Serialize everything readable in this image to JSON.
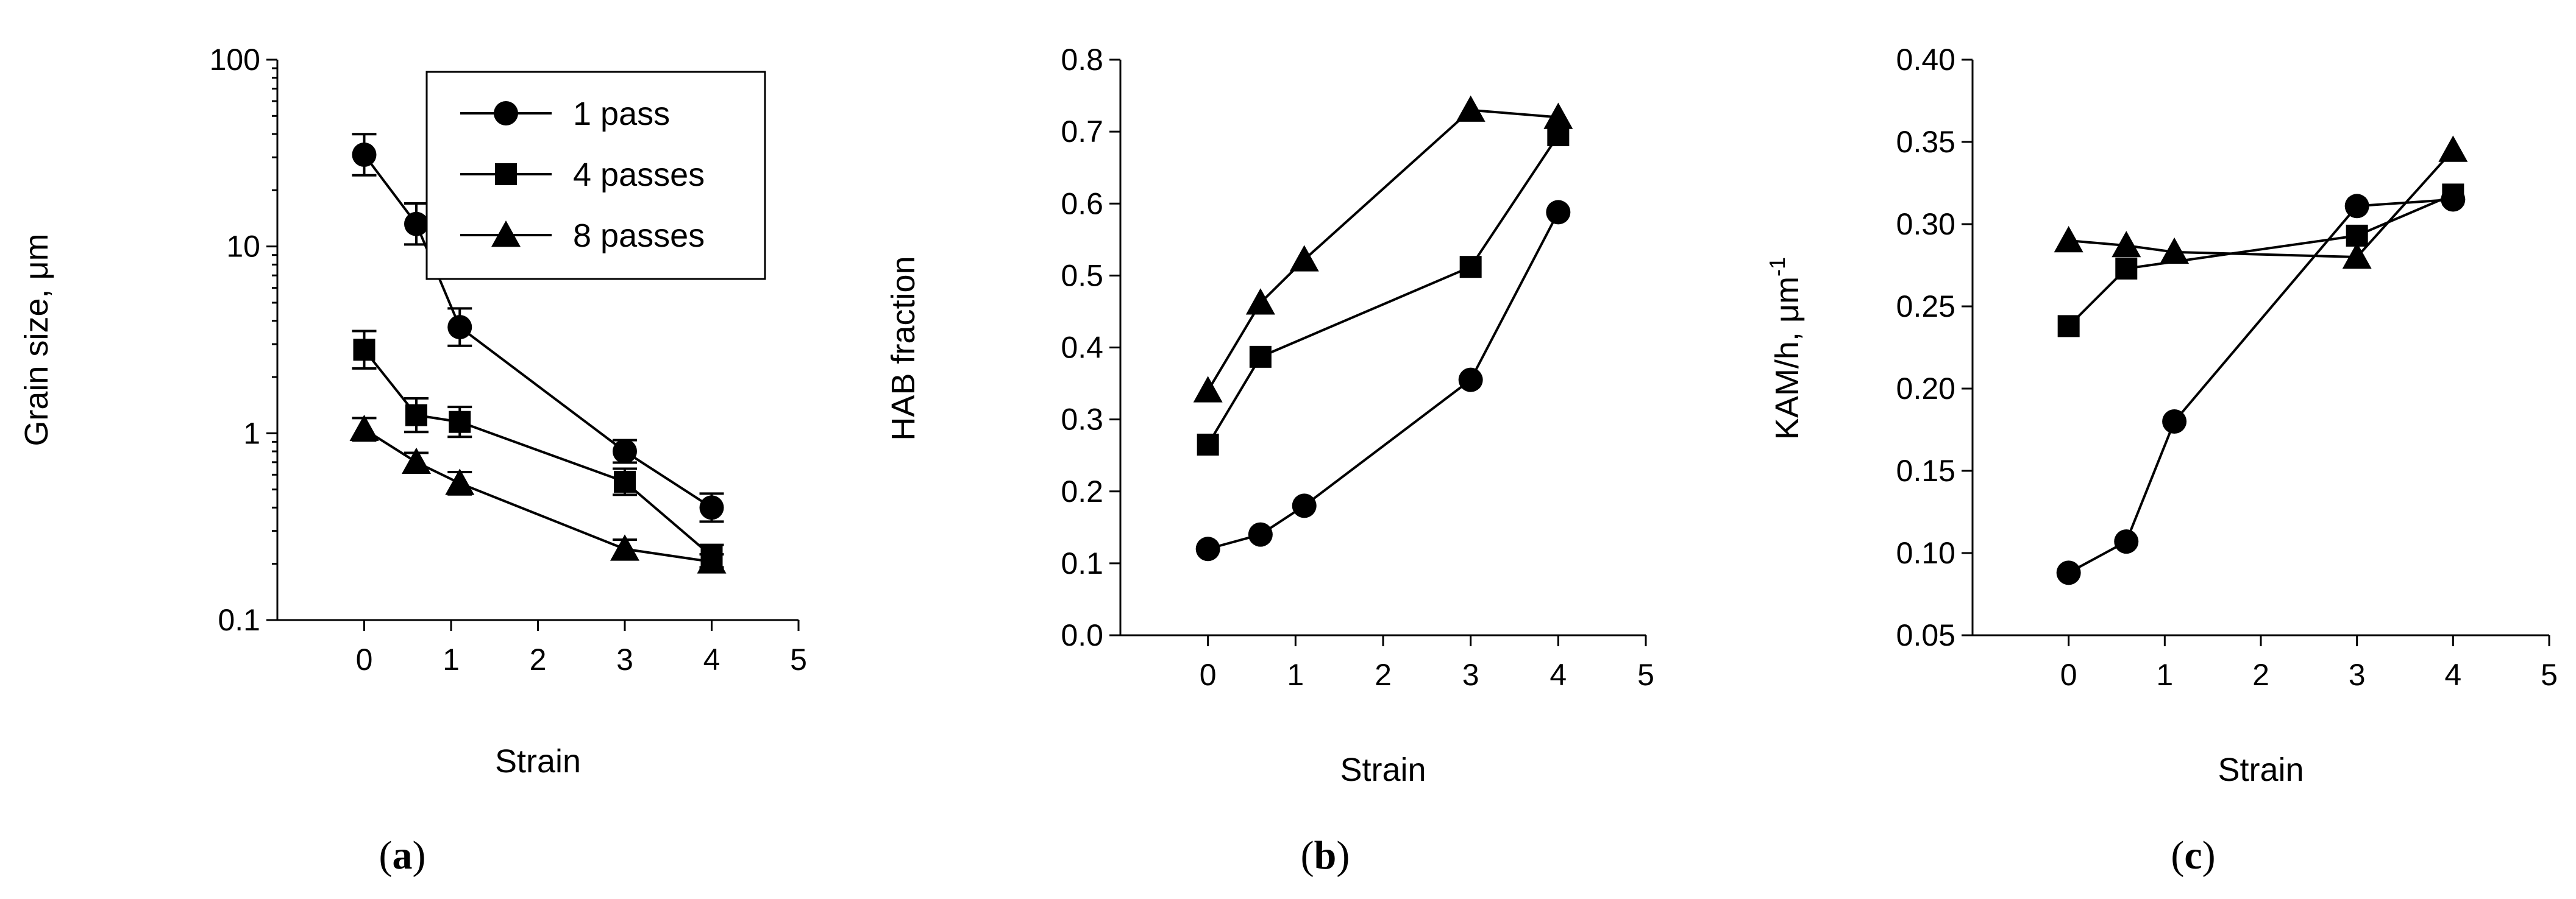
{
  "chart_data": [
    {
      "type": "line",
      "panel_label": "a",
      "xlabel": "Strain",
      "ylabel": "Grain size, μm",
      "yscale": "log",
      "xlim": [
        -1,
        5
      ],
      "ylim": [
        0.1,
        100
      ],
      "xticks": [
        "0",
        "1",
        "2",
        "3",
        "4",
        "5"
      ],
      "yticks": [
        "0.1",
        "1",
        "10",
        "100"
      ],
      "x": [
        0,
        0.6,
        1.1,
        3,
        4
      ],
      "legend": "top-right",
      "series": [
        {
          "name": "1 pass",
          "marker": "circle",
          "values": [
            31,
            13.2,
            3.7,
            0.8,
            0.4
          ],
          "error": [
            0.22,
            0.22,
            0.2,
            0.12,
            0.15
          ]
        },
        {
          "name": "4 passes",
          "marker": "square",
          "values": [
            2.8,
            1.25,
            1.15,
            0.55,
            0.22
          ],
          "error": [
            0.2,
            0.18,
            0.16,
            0.14,
            0.12
          ]
        },
        {
          "name": "8 passes",
          "marker": "triangle",
          "values": [
            1.05,
            0.7,
            0.54,
            0.24,
            0.205
          ],
          "error": [
            0.12,
            0.1,
            0.12,
            0.1,
            0.08
          ]
        }
      ]
    },
    {
      "type": "line",
      "panel_label": "b",
      "xlabel": "Strain",
      "ylabel": "HAB fraction",
      "xlim": [
        -1,
        5
      ],
      "ylim": [
        0,
        0.8
      ],
      "xticks": [
        "0",
        "1",
        "2",
        "3",
        "4",
        "5"
      ],
      "yticks": [
        "0.0",
        "0.1",
        "0.2",
        "0.3",
        "0.4",
        "0.5",
        "0.6",
        "0.7",
        "0.8"
      ],
      "x": [
        0,
        0.6,
        1.1,
        3,
        4
      ],
      "series": [
        {
          "marker": "circle",
          "values": [
            0.12,
            0.14,
            0.18,
            0.355,
            0.588
          ]
        },
        {
          "marker": "square",
          "values": [
            0.265,
            0.387,
            null,
            0.512,
            0.695
          ]
        },
        {
          "marker": "triangle",
          "values": [
            0.34,
            0.462,
            0.522,
            0.73,
            0.72
          ]
        }
      ]
    },
    {
      "type": "line",
      "panel_label": "c",
      "xlabel": "Strain",
      "ylabel": "KAM/h, μm",
      "ylabel_superscript": "-1",
      "xlim": [
        -1,
        5
      ],
      "ylim": [
        0.05,
        0.4
      ],
      "xticks": [
        "0",
        "1",
        "2",
        "3",
        "4",
        "5"
      ],
      "yticks": [
        "0.05",
        "0.10",
        "0.15",
        "0.20",
        "0.25",
        "0.30",
        "0.35",
        "0.40"
      ],
      "x": [
        0,
        0.6,
        1.1,
        3,
        4
      ],
      "series": [
        {
          "marker": "circle",
          "values": [
            0.088,
            0.107,
            0.18,
            0.311,
            0.315
          ]
        },
        {
          "marker": "square",
          "values": [
            0.238,
            0.273,
            null,
            0.293,
            0.318
          ]
        },
        {
          "marker": "triangle",
          "values": [
            0.29,
            0.287,
            0.283,
            0.28,
            0.345
          ]
        }
      ]
    }
  ]
}
